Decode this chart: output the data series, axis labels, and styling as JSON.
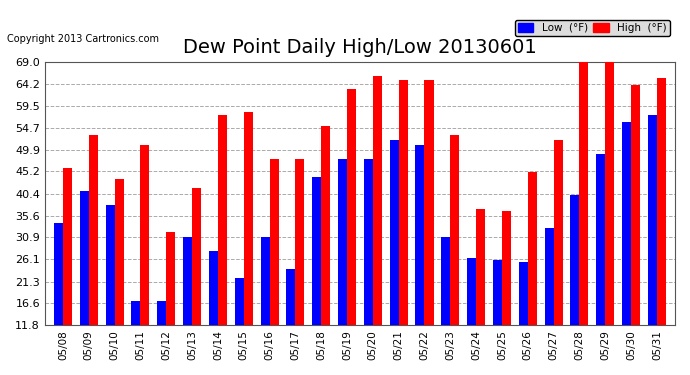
{
  "title": "Dew Point Daily High/Low 20130601",
  "copyright": "Copyright 2013 Cartronics.com",
  "dates": [
    "05/08",
    "05/09",
    "05/10",
    "05/11",
    "05/12",
    "05/13",
    "05/14",
    "05/15",
    "05/16",
    "05/17",
    "05/18",
    "05/19",
    "05/20",
    "05/21",
    "05/22",
    "05/23",
    "05/24",
    "05/25",
    "05/26",
    "05/27",
    "05/28",
    "05/29",
    "05/30",
    "05/31"
  ],
  "low_values": [
    34.0,
    41.0,
    38.0,
    17.0,
    17.0,
    31.0,
    28.0,
    22.0,
    31.0,
    24.0,
    44.0,
    48.0,
    48.0,
    52.0,
    51.0,
    31.0,
    26.5,
    26.0,
    25.5,
    33.0,
    40.0,
    49.0,
    56.0,
    57.5
  ],
  "high_values": [
    46.0,
    53.0,
    43.5,
    51.0,
    32.0,
    41.5,
    57.5,
    58.0,
    48.0,
    48.0,
    55.0,
    63.0,
    66.0,
    65.0,
    65.0,
    53.0,
    37.0,
    36.5,
    45.0,
    52.0,
    69.0,
    69.0,
    64.0,
    65.5
  ],
  "ylim_min": 11.8,
  "ylim_max": 69.0,
  "yticks": [
    11.8,
    16.6,
    21.3,
    26.1,
    30.9,
    35.6,
    40.4,
    45.2,
    49.9,
    54.7,
    59.5,
    64.2,
    69.0
  ],
  "low_color": "#0000ff",
  "high_color": "#ff0000",
  "bg_color": "#ffffff",
  "grid_color": "#aaaaaa",
  "title_fontsize": 14,
  "bar_width": 0.35
}
